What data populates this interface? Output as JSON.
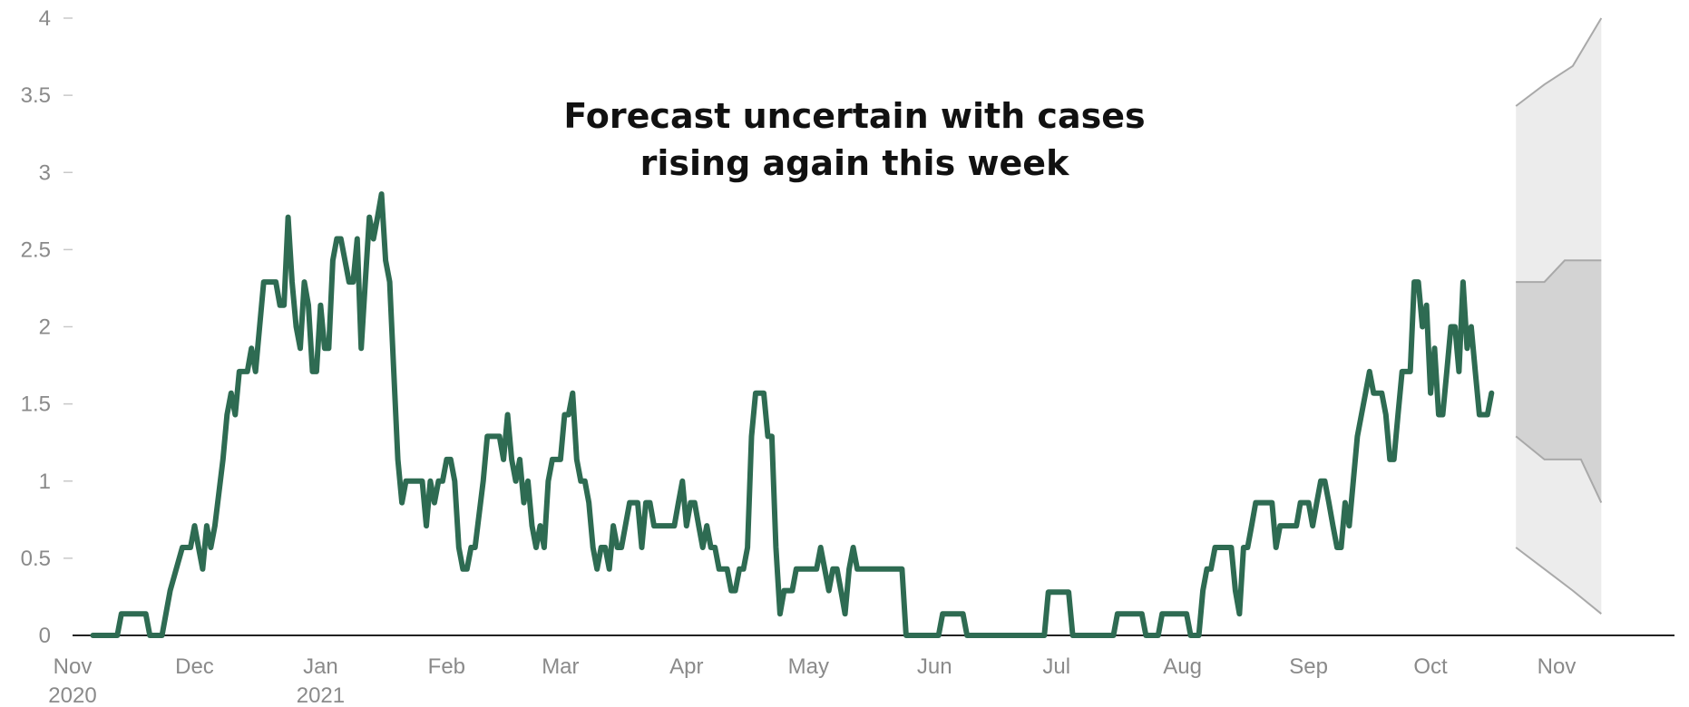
{
  "chart_data": {
    "type": "line",
    "title_lines": [
      "Forecast uncertain with cases",
      "rising again this week"
    ],
    "xlabel": "",
    "ylabel": "",
    "ylim": [
      0,
      4
    ],
    "xlim": [
      "2020-11-01",
      "2021-11-30"
    ],
    "grid": false,
    "legend": "none",
    "colors": {
      "line": "#2e6b52",
      "outer_band": "#ececec",
      "inner_band": "#d3d3d3",
      "band_edge": "#a9a9a9",
      "axis": "#222222",
      "tick": "#c8c8c8",
      "text": "#8a8a8a"
    },
    "y_ticks": [
      {
        "value": 0,
        "label": "0"
      },
      {
        "value": 0.5,
        "label": "0.5"
      },
      {
        "value": 1,
        "label": "1"
      },
      {
        "value": 1.5,
        "label": "1.5"
      },
      {
        "value": 2,
        "label": "2"
      },
      {
        "value": 2.5,
        "label": "2.5"
      },
      {
        "value": 3,
        "label": "3"
      },
      {
        "value": 3.5,
        "label": "3.5"
      },
      {
        "value": 4,
        "label": "4"
      }
    ],
    "x_ticks": [
      {
        "date": "2020-11-01",
        "label": "Nov",
        "sublabel": "2020"
      },
      {
        "date": "2020-12-01",
        "label": "Dec"
      },
      {
        "date": "2021-01-01",
        "label": "Jan",
        "sublabel": "2021"
      },
      {
        "date": "2021-02-01",
        "label": "Feb"
      },
      {
        "date": "2021-03-01",
        "label": "Mar"
      },
      {
        "date": "2021-04-01",
        "label": "Apr"
      },
      {
        "date": "2021-05-01",
        "label": "May"
      },
      {
        "date": "2021-06-01",
        "label": "Jun"
      },
      {
        "date": "2021-07-01",
        "label": "Jul"
      },
      {
        "date": "2021-08-01",
        "label": "Aug"
      },
      {
        "date": "2021-09-01",
        "label": "Sep"
      },
      {
        "date": "2021-10-01",
        "label": "Oct"
      },
      {
        "date": "2021-11-01",
        "label": "Nov"
      }
    ],
    "series": [
      {
        "points": [
          [
            "2020-11-06",
            0
          ],
          [
            "2020-11-12",
            0
          ],
          [
            "2020-11-13",
            0.14
          ],
          [
            "2020-11-19",
            0.14
          ],
          [
            "2020-11-20",
            0
          ],
          [
            "2020-11-23",
            0
          ],
          [
            "2020-11-25",
            0.29
          ],
          [
            "2020-11-28",
            0.57
          ],
          [
            "2020-11-30",
            0.57
          ],
          [
            "2020-12-01",
            0.71
          ],
          [
            "2020-12-02",
            0.57
          ],
          [
            "2020-12-03",
            0.43
          ],
          [
            "2020-12-04",
            0.71
          ],
          [
            "2020-12-05",
            0.57
          ],
          [
            "2020-12-06",
            0.71
          ],
          [
            "2020-12-08",
            1.14
          ],
          [
            "2020-12-09",
            1.43
          ],
          [
            "2020-12-10",
            1.57
          ],
          [
            "2020-12-11",
            1.43
          ],
          [
            "2020-12-12",
            1.71
          ],
          [
            "2020-12-14",
            1.71
          ],
          [
            "2020-12-15",
            1.86
          ],
          [
            "2020-12-16",
            1.71
          ],
          [
            "2020-12-18",
            2.29
          ],
          [
            "2020-12-21",
            2.29
          ],
          [
            "2020-12-22",
            2.14
          ],
          [
            "2020-12-23",
            2.14
          ],
          [
            "2020-12-24",
            2.71
          ],
          [
            "2020-12-25",
            2.29
          ],
          [
            "2020-12-26",
            2.0
          ],
          [
            "2020-12-27",
            1.86
          ],
          [
            "2020-12-28",
            2.29
          ],
          [
            "2020-12-29",
            2.14
          ],
          [
            "2020-12-30",
            1.71
          ],
          [
            "2020-12-31",
            1.71
          ],
          [
            "2021-01-01",
            2.14
          ],
          [
            "2021-01-02",
            1.86
          ],
          [
            "2021-01-03",
            1.86
          ],
          [
            "2021-01-04",
            2.43
          ],
          [
            "2021-01-05",
            2.57
          ],
          [
            "2021-01-06",
            2.57
          ],
          [
            "2021-01-08",
            2.29
          ],
          [
            "2021-01-09",
            2.29
          ],
          [
            "2021-01-10",
            2.57
          ],
          [
            "2021-01-11",
            1.86
          ],
          [
            "2021-01-12",
            2.29
          ],
          [
            "2021-01-13",
            2.71
          ],
          [
            "2021-01-14",
            2.57
          ],
          [
            "2021-01-15",
            2.71
          ],
          [
            "2021-01-16",
            2.86
          ],
          [
            "2021-01-17",
            2.43
          ],
          [
            "2021-01-18",
            2.29
          ],
          [
            "2021-01-19",
            1.71
          ],
          [
            "2021-01-20",
            1.14
          ],
          [
            "2021-01-21",
            0.86
          ],
          [
            "2021-01-22",
            1.0
          ],
          [
            "2021-01-26",
            1.0
          ],
          [
            "2021-01-27",
            0.71
          ],
          [
            "2021-01-28",
            1.0
          ],
          [
            "2021-01-29",
            0.86
          ],
          [
            "2021-01-30",
            1.0
          ],
          [
            "2021-01-31",
            1.0
          ],
          [
            "2021-02-01",
            1.14
          ],
          [
            "2021-02-02",
            1.14
          ],
          [
            "2021-02-03",
            1.0
          ],
          [
            "2021-02-04",
            0.57
          ],
          [
            "2021-02-05",
            0.43
          ],
          [
            "2021-02-06",
            0.43
          ],
          [
            "2021-02-07",
            0.57
          ],
          [
            "2021-02-08",
            0.57
          ],
          [
            "2021-02-10",
            1.0
          ],
          [
            "2021-02-11",
            1.29
          ],
          [
            "2021-02-14",
            1.29
          ],
          [
            "2021-02-15",
            1.14
          ],
          [
            "2021-02-16",
            1.43
          ],
          [
            "2021-02-17",
            1.14
          ],
          [
            "2021-02-18",
            1.0
          ],
          [
            "2021-02-19",
            1.14
          ],
          [
            "2021-02-20",
            0.86
          ],
          [
            "2021-02-21",
            1.0
          ],
          [
            "2021-02-22",
            0.71
          ],
          [
            "2021-02-23",
            0.57
          ],
          [
            "2021-02-24",
            0.71
          ],
          [
            "2021-02-25",
            0.57
          ],
          [
            "2021-02-26",
            1.0
          ],
          [
            "2021-02-27",
            1.14
          ],
          [
            "2021-03-01",
            1.14
          ],
          [
            "2021-03-02",
            1.43
          ],
          [
            "2021-03-03",
            1.43
          ],
          [
            "2021-03-04",
            1.57
          ],
          [
            "2021-03-05",
            1.14
          ],
          [
            "2021-03-06",
            1.0
          ],
          [
            "2021-03-07",
            1.0
          ],
          [
            "2021-03-08",
            0.86
          ],
          [
            "2021-03-09",
            0.57
          ],
          [
            "2021-03-10",
            0.43
          ],
          [
            "2021-03-11",
            0.57
          ],
          [
            "2021-03-12",
            0.57
          ],
          [
            "2021-03-13",
            0.43
          ],
          [
            "2021-03-14",
            0.71
          ],
          [
            "2021-03-15",
            0.57
          ],
          [
            "2021-03-16",
            0.57
          ],
          [
            "2021-03-18",
            0.86
          ],
          [
            "2021-03-20",
            0.86
          ],
          [
            "2021-03-21",
            0.57
          ],
          [
            "2021-03-22",
            0.86
          ],
          [
            "2021-03-23",
            0.86
          ],
          [
            "2021-03-24",
            0.71
          ],
          [
            "2021-03-29",
            0.71
          ],
          [
            "2021-03-30",
            0.86
          ],
          [
            "2021-03-31",
            1.0
          ],
          [
            "2021-04-01",
            0.71
          ],
          [
            "2021-04-02",
            0.86
          ],
          [
            "2021-04-03",
            0.86
          ],
          [
            "2021-04-04",
            0.71
          ],
          [
            "2021-04-05",
            0.57
          ],
          [
            "2021-04-06",
            0.71
          ],
          [
            "2021-04-07",
            0.57
          ],
          [
            "2021-04-08",
            0.57
          ],
          [
            "2021-04-09",
            0.43
          ],
          [
            "2021-04-11",
            0.43
          ],
          [
            "2021-04-12",
            0.29
          ],
          [
            "2021-04-13",
            0.29
          ],
          [
            "2021-04-14",
            0.43
          ],
          [
            "2021-04-15",
            0.43
          ],
          [
            "2021-04-16",
            0.57
          ],
          [
            "2021-04-17",
            1.29
          ],
          [
            "2021-04-18",
            1.57
          ],
          [
            "2021-04-20",
            1.57
          ],
          [
            "2021-04-21",
            1.29
          ],
          [
            "2021-04-22",
            1.29
          ],
          [
            "2021-04-23",
            0.57
          ],
          [
            "2021-04-24",
            0.14
          ],
          [
            "2021-04-25",
            0.29
          ],
          [
            "2021-04-27",
            0.29
          ],
          [
            "2021-04-28",
            0.43
          ],
          [
            "2021-05-03",
            0.43
          ],
          [
            "2021-05-04",
            0.57
          ],
          [
            "2021-05-05",
            0.43
          ],
          [
            "2021-05-06",
            0.29
          ],
          [
            "2021-05-07",
            0.43
          ],
          [
            "2021-05-08",
            0.43
          ],
          [
            "2021-05-09",
            0.29
          ],
          [
            "2021-05-10",
            0.14
          ],
          [
            "2021-05-11",
            0.43
          ],
          [
            "2021-05-12",
            0.57
          ],
          [
            "2021-05-13",
            0.43
          ],
          [
            "2021-05-24",
            0.43
          ],
          [
            "2021-05-25",
            0
          ],
          [
            "2021-06-02",
            0
          ],
          [
            "2021-06-03",
            0.14
          ],
          [
            "2021-06-08",
            0.14
          ],
          [
            "2021-06-09",
            0
          ],
          [
            "2021-06-28",
            0
          ],
          [
            "2021-06-29",
            0.28
          ],
          [
            "2021-07-04",
            0.28
          ],
          [
            "2021-07-05",
            0
          ],
          [
            "2021-07-15",
            0
          ],
          [
            "2021-07-16",
            0.14
          ],
          [
            "2021-07-22",
            0.14
          ],
          [
            "2021-07-23",
            0
          ],
          [
            "2021-07-26",
            0
          ],
          [
            "2021-07-27",
            0.14
          ],
          [
            "2021-08-02",
            0.14
          ],
          [
            "2021-08-03",
            0
          ],
          [
            "2021-08-05",
            0
          ],
          [
            "2021-08-06",
            0.29
          ],
          [
            "2021-08-07",
            0.43
          ],
          [
            "2021-08-08",
            0.43
          ],
          [
            "2021-08-09",
            0.57
          ],
          [
            "2021-08-13",
            0.57
          ],
          [
            "2021-08-14",
            0.29
          ],
          [
            "2021-08-15",
            0.14
          ],
          [
            "2021-08-16",
            0.57
          ],
          [
            "2021-08-17",
            0.57
          ],
          [
            "2021-08-18",
            0.71
          ],
          [
            "2021-08-19",
            0.86
          ],
          [
            "2021-08-23",
            0.86
          ],
          [
            "2021-08-24",
            0.57
          ],
          [
            "2021-08-25",
            0.71
          ],
          [
            "2021-08-29",
            0.71
          ],
          [
            "2021-08-30",
            0.86
          ],
          [
            "2021-09-01",
            0.86
          ],
          [
            "2021-09-02",
            0.71
          ],
          [
            "2021-09-03",
            0.86
          ],
          [
            "2021-09-04",
            1.0
          ],
          [
            "2021-09-05",
            1.0
          ],
          [
            "2021-09-06",
            0.86
          ],
          [
            "2021-09-07",
            0.71
          ],
          [
            "2021-09-08",
            0.57
          ],
          [
            "2021-09-09",
            0.57
          ],
          [
            "2021-09-10",
            0.86
          ],
          [
            "2021-09-11",
            0.71
          ],
          [
            "2021-09-12",
            1.0
          ],
          [
            "2021-09-13",
            1.29
          ],
          [
            "2021-09-14",
            1.43
          ],
          [
            "2021-09-15",
            1.57
          ],
          [
            "2021-09-16",
            1.71
          ],
          [
            "2021-09-17",
            1.57
          ],
          [
            "2021-09-19",
            1.57
          ],
          [
            "2021-09-20",
            1.43
          ],
          [
            "2021-09-21",
            1.14
          ],
          [
            "2021-09-22",
            1.14
          ],
          [
            "2021-09-23",
            1.43
          ],
          [
            "2021-09-24",
            1.71
          ],
          [
            "2021-09-26",
            1.71
          ],
          [
            "2021-09-27",
            2.29
          ],
          [
            "2021-09-28",
            2.29
          ],
          [
            "2021-09-29",
            2.0
          ],
          [
            "2021-09-30",
            2.14
          ],
          [
            "2021-10-01",
            1.57
          ],
          [
            "2021-10-02",
            1.86
          ],
          [
            "2021-10-03",
            1.43
          ],
          [
            "2021-10-04",
            1.43
          ],
          [
            "2021-10-05",
            1.71
          ],
          [
            "2021-10-06",
            2.0
          ],
          [
            "2021-10-07",
            2.0
          ],
          [
            "2021-10-08",
            1.71
          ],
          [
            "2021-10-09",
            2.29
          ],
          [
            "2021-10-10",
            1.86
          ],
          [
            "2021-10-11",
            2.0
          ],
          [
            "2021-10-12",
            1.71
          ],
          [
            "2021-10-13",
            1.43
          ],
          [
            "2021-10-15",
            1.43
          ],
          [
            "2021-10-16",
            1.57
          ]
        ]
      }
    ],
    "forecast_band_outer": {
      "upper": [
        [
          "2021-10-22",
          3.43
        ],
        [
          "2021-10-29",
          3.57
        ],
        [
          "2021-11-05",
          3.69
        ],
        [
          "2021-11-12",
          4.0
        ]
      ],
      "lower": [
        [
          "2021-10-22",
          0.57
        ],
        [
          "2021-10-29",
          0.43
        ],
        [
          "2021-11-05",
          0.29
        ],
        [
          "2021-11-12",
          0.14
        ]
      ]
    },
    "forecast_band_inner": {
      "upper": [
        [
          "2021-10-22",
          2.29
        ],
        [
          "2021-10-29",
          2.29
        ],
        [
          "2021-11-03",
          2.43
        ],
        [
          "2021-11-12",
          2.43
        ]
      ],
      "lower": [
        [
          "2021-10-22",
          1.29
        ],
        [
          "2021-10-29",
          1.14
        ],
        [
          "2021-11-07",
          1.14
        ],
        [
          "2021-11-12",
          0.86
        ]
      ]
    }
  }
}
